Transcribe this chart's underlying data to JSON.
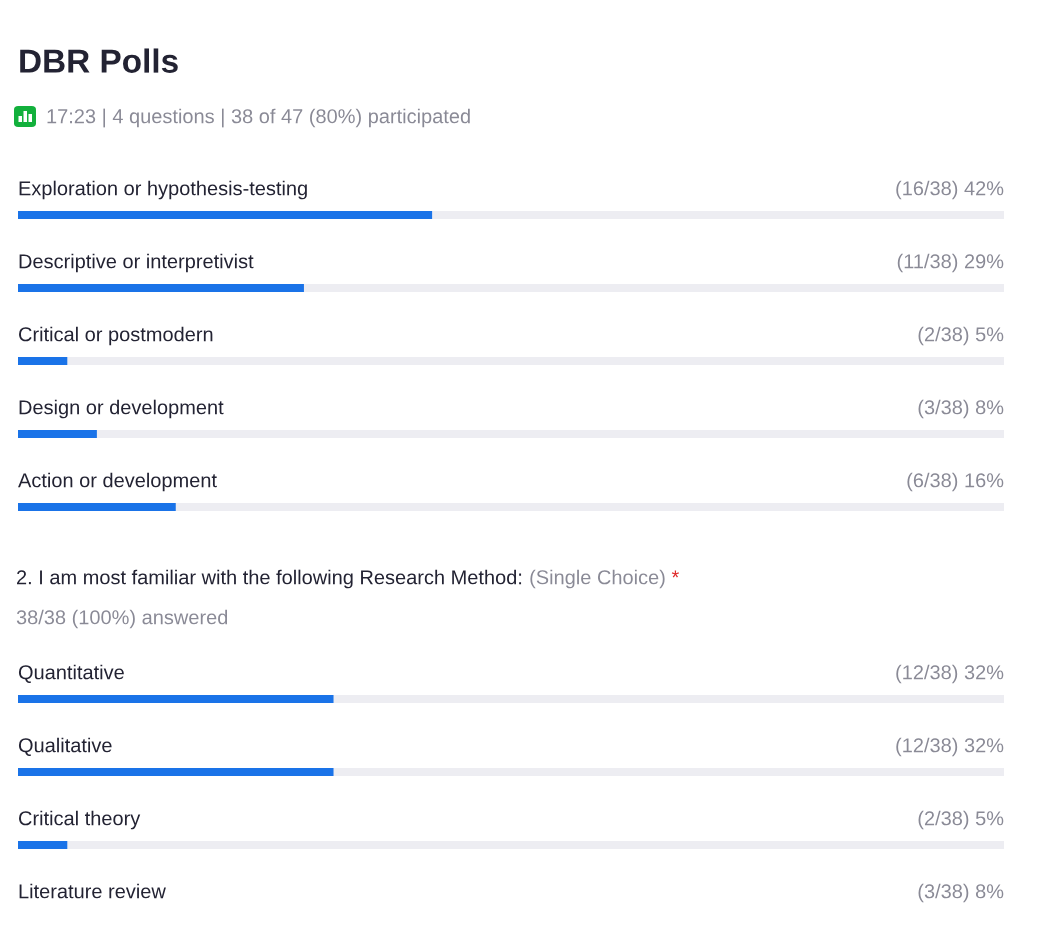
{
  "chart_data": [
    {
      "type": "bar",
      "orientation": "horizontal",
      "title": "DBR Polls",
      "subtitle": "17:23 | 4 questions | 38 of 47 (80%) participated",
      "categories": [
        "Exploration or hypothesis-testing",
        "Descriptive or interpretivist",
        "Critical or postmodern",
        "Design or development",
        "Action or development"
      ],
      "values": [
        42,
        29,
        5,
        8,
        16
      ],
      "value_labels": [
        "(16/38) 42%",
        "(11/38) 29%",
        "(2/38) 5%",
        "(3/38) 8%",
        "(6/38) 16%"
      ],
      "color": "#1a73e8",
      "xlim": [
        0,
        100
      ],
      "tick_labels": "y"
    },
    {
      "type": "bar",
      "orientation": "horizontal",
      "title": "2. I am most familiar with the following Research Method:",
      "annotations": [
        "(Single Choice)",
        "*"
      ],
      "subtitle": "38/38 (100%) answered",
      "categories": [
        "Quantitative",
        "Qualitative",
        "Critical theory",
        "Literature review"
      ],
      "values": [
        32,
        32,
        5,
        null
      ],
      "value_labels": [
        "(12/38) 32%",
        "(12/38) 32%",
        "(2/38) 5%",
        "(3/38) 8%"
      ],
      "color": "#1a73e8",
      "xlim": [
        0,
        100
      ],
      "tick_labels": "y"
    }
  ]
}
